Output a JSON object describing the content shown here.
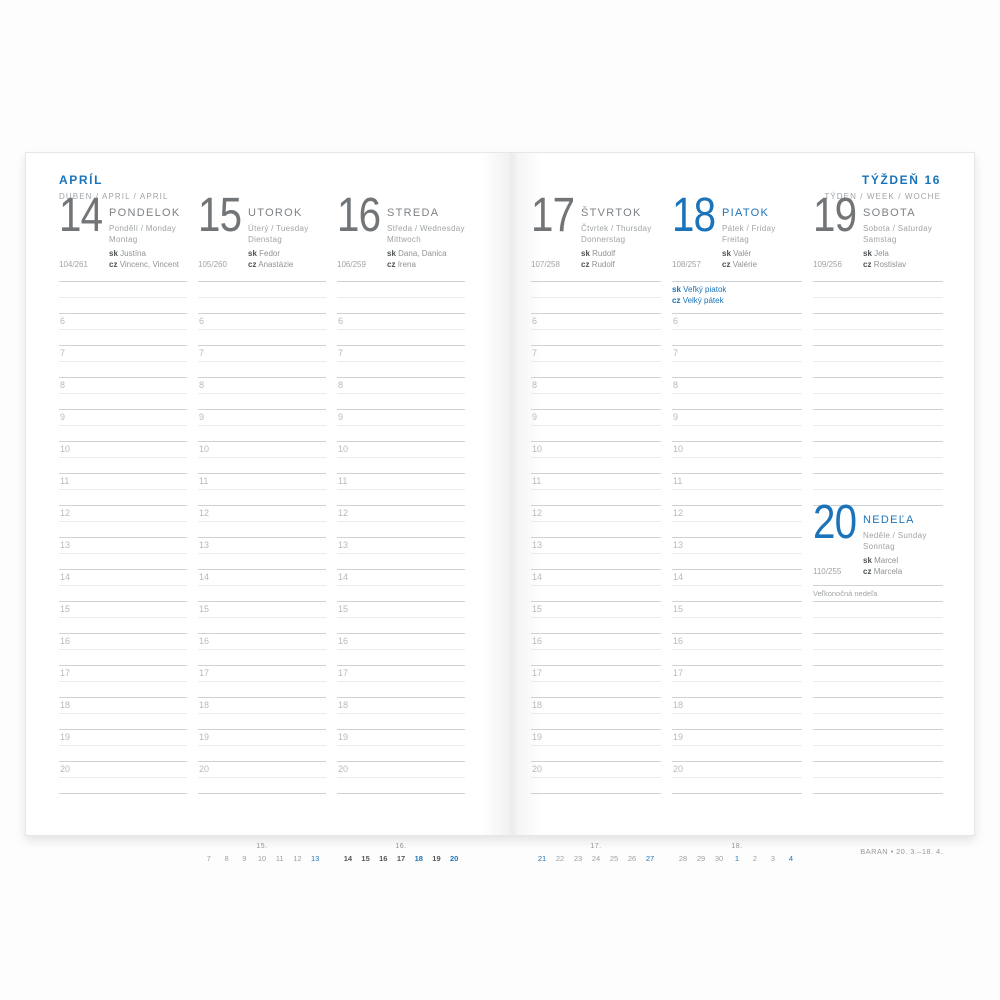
{
  "colors": {
    "accent": "#1b74ba"
  },
  "header_left": {
    "title": "APRÍL",
    "subtitle": "DUBEN / APRIL / APRIL"
  },
  "header_right": {
    "title": "TÝŽDEŇ 16",
    "subtitle": "TÝDEN / WEEK / WOCHE"
  },
  "labels": {
    "sk": "sk",
    "cz": "cz"
  },
  "hours": [
    "6",
    "7",
    "8",
    "9",
    "10",
    "11",
    "12",
    "13",
    "14",
    "15",
    "16",
    "17",
    "18",
    "19",
    "20"
  ],
  "days": [
    {
      "num": "14",
      "name": "PONDELOK",
      "line1": "Pondělí / Monday",
      "line2": "Montag",
      "sk": "Justína",
      "cz": "Vincenc, Vincent",
      "doy": "104/261"
    },
    {
      "num": "15",
      "name": "UTOROK",
      "line1": "Úterý / Tuesday",
      "line2": "Dienstag",
      "sk": "Fedor",
      "cz": "Anastázie",
      "doy": "105/260"
    },
    {
      "num": "16",
      "name": "STREDA",
      "line1": "Středa / Wednesday",
      "line2": "Mittwoch",
      "sk": "Dana, Danica",
      "cz": "Irena",
      "doy": "106/259"
    },
    {
      "num": "17",
      "name": "ŠTVRTOK",
      "line1": "Čtvrtek / Thursday",
      "line2": "Donnerstag",
      "sk": "Rudolf",
      "cz": "Rudolf",
      "doy": "107/258"
    },
    {
      "num": "18",
      "name": "PIATOK",
      "line1": "Pátek / Friday",
      "line2": "Freitag",
      "sk": "Valér",
      "cz": "Valérie",
      "doy": "108/257",
      "holiday_sk": "Veľký piatok",
      "holiday_cz": "Velký pátek"
    },
    {
      "num": "19",
      "name": "SOBOTA",
      "line1": "Sobota / Saturday",
      "line2": "Samstag",
      "sk": "Jela",
      "cz": "Rostislav",
      "doy": "109/256"
    },
    {
      "num": "20",
      "name": "NEDEĽA",
      "line1": "Neděle / Sunday",
      "line2": "Sonntag",
      "sk": "Marcel",
      "cz": "Marcela",
      "doy": "110/255",
      "note": "Veľkonočná nedeľa"
    }
  ],
  "mini_calendars": [
    {
      "week": "15.",
      "days": [
        {
          "t": "7"
        },
        {
          "t": "8"
        },
        {
          "t": "9"
        },
        {
          "t": "10"
        },
        {
          "t": "11"
        },
        {
          "t": "12"
        },
        {
          "t": "13",
          "style": "blue"
        }
      ]
    },
    {
      "week": "16.",
      "days": [
        {
          "t": "14",
          "style": "current"
        },
        {
          "t": "15",
          "style": "current"
        },
        {
          "t": "16",
          "style": "current"
        },
        {
          "t": "17",
          "style": "current"
        },
        {
          "t": "18",
          "style": "blue-bold"
        },
        {
          "t": "19",
          "style": "current"
        },
        {
          "t": "20",
          "style": "blue-bold"
        }
      ]
    },
    {
      "week": "17.",
      "days": [
        {
          "t": "21",
          "style": "blue"
        },
        {
          "t": "22"
        },
        {
          "t": "23"
        },
        {
          "t": "24"
        },
        {
          "t": "25"
        },
        {
          "t": "26"
        },
        {
          "t": "27",
          "style": "blue"
        }
      ]
    },
    {
      "week": "18.",
      "days": [
        {
          "t": "28"
        },
        {
          "t": "29"
        },
        {
          "t": "30"
        },
        {
          "t": "1",
          "style": "blue"
        },
        {
          "t": "2"
        },
        {
          "t": "3"
        },
        {
          "t": "4",
          "style": "blue"
        }
      ]
    }
  ],
  "zodiac": "BARAN • 20. 3.–18. 4."
}
